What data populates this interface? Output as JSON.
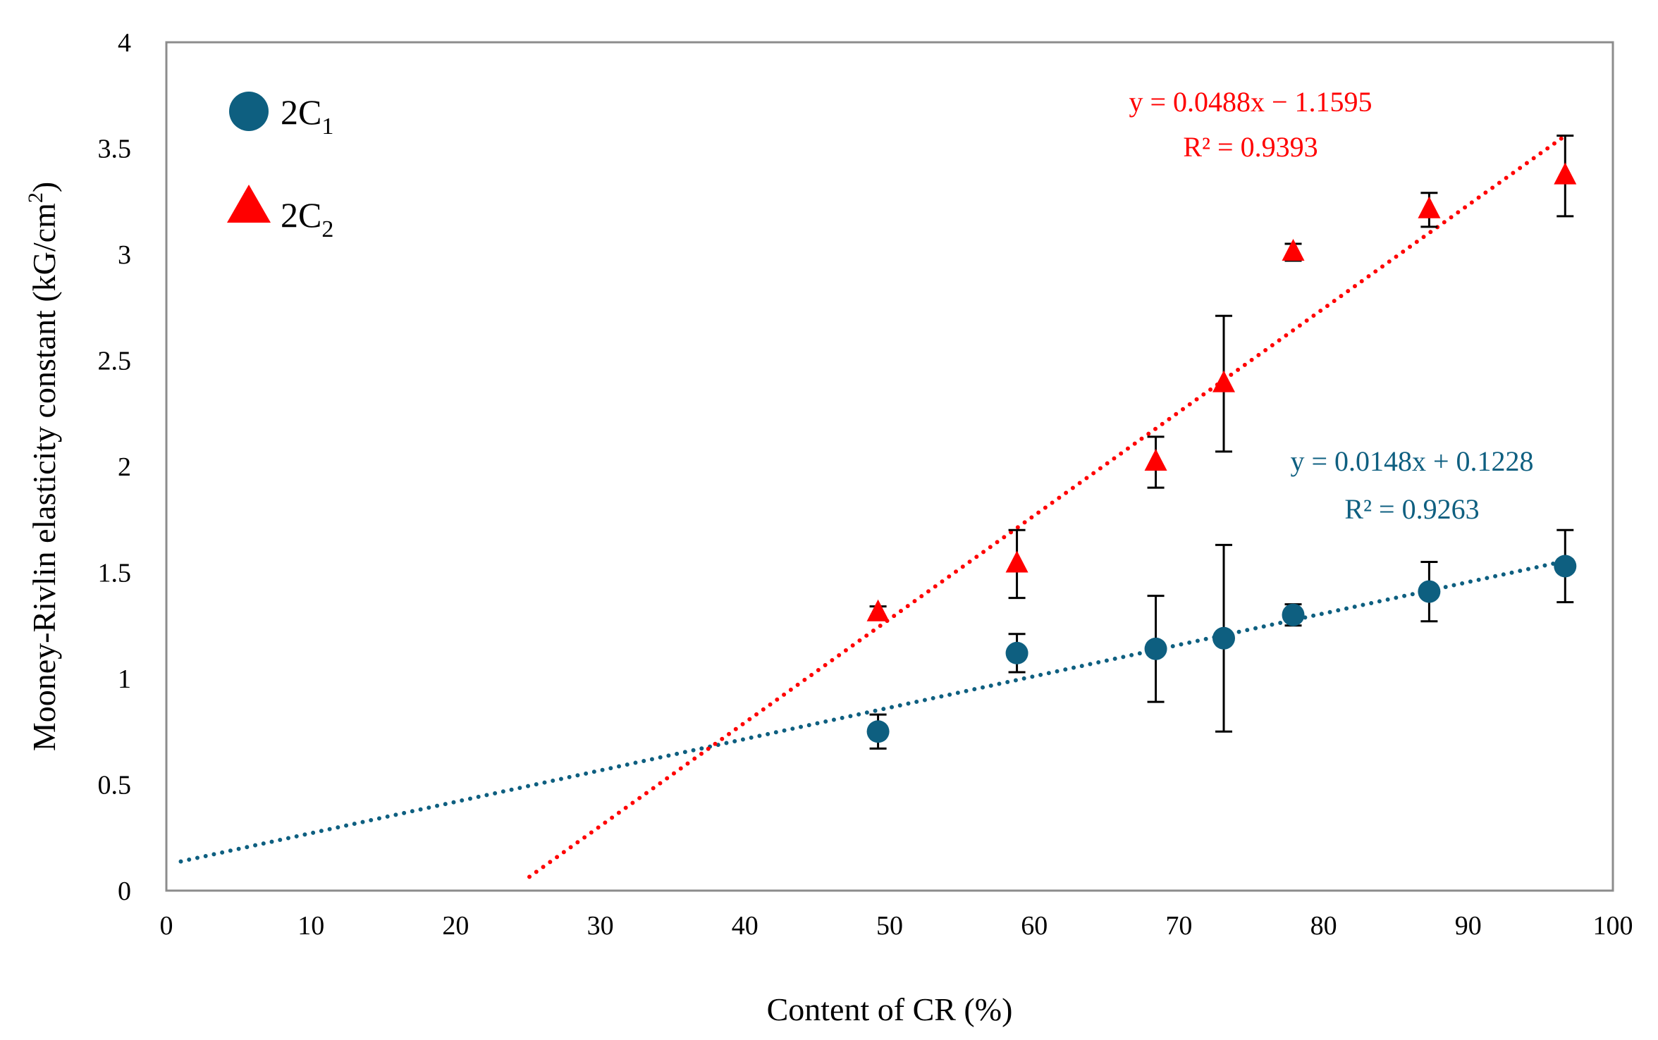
{
  "chart_data": {
    "type": "scatter",
    "title": "",
    "xlabel": "Content of CR (%)",
    "ylabel_main": "Mooney-Rivlin elasticity constant (kG/cm",
    "ylabel_sup": "2",
    "ylabel_close": ")",
    "xlim": [
      0,
      100
    ],
    "ylim": [
      0,
      4
    ],
    "x_ticks": [
      0,
      10,
      20,
      30,
      40,
      50,
      60,
      70,
      80,
      90,
      100
    ],
    "y_ticks": [
      0,
      0.5,
      1,
      1.5,
      2,
      2.5,
      3,
      3.5,
      4
    ],
    "x_tick_labels": [
      "0",
      "10",
      "20",
      "30",
      "40",
      "50",
      "60",
      "70",
      "80",
      "90",
      "100"
    ],
    "y_tick_labels": [
      "0",
      "0.5",
      "1",
      "1.5",
      "2",
      "2.5",
      "3",
      "3.5",
      "4"
    ],
    "grid": false,
    "legend_position": "top-left",
    "series": [
      {
        "name": "2C1",
        "label_main": "2C",
        "label_sub": "1",
        "marker": "circle",
        "color": "#0e5f80",
        "x": [
          49.2,
          58.8,
          68.4,
          73.1,
          77.9,
          87.3,
          96.7
        ],
        "y": [
          0.75,
          1.12,
          1.14,
          1.19,
          1.3,
          1.41,
          1.53
        ],
        "err": [
          0.08,
          0.09,
          0.25,
          0.44,
          0.05,
          0.14,
          0.17
        ],
        "trend": {
          "slope": 0.0148,
          "intercept": 0.1228,
          "x_range": [
            1,
            96.7
          ],
          "equation": "y = 0.0148x + 0.1228",
          "r2": "R² = 0.9263"
        }
      },
      {
        "name": "2C2",
        "label_main": "2C",
        "label_sub": "2",
        "marker": "triangle",
        "color": "#ff0000",
        "x": [
          49.2,
          58.8,
          68.4,
          73.1,
          77.9,
          87.3,
          96.7
        ],
        "y": [
          1.31,
          1.54,
          2.02,
          2.39,
          3.01,
          3.21,
          3.37
        ],
        "err": [
          0.03,
          0.16,
          0.12,
          0.32,
          0.04,
          0.08,
          0.19
        ],
        "trend": {
          "slope": 0.0488,
          "intercept": -1.1595,
          "x_range": [
            25.1,
            96.7
          ],
          "equation": "y = 0.0488x − 1.1595",
          "r2": "R² = 0.9393"
        }
      }
    ]
  }
}
